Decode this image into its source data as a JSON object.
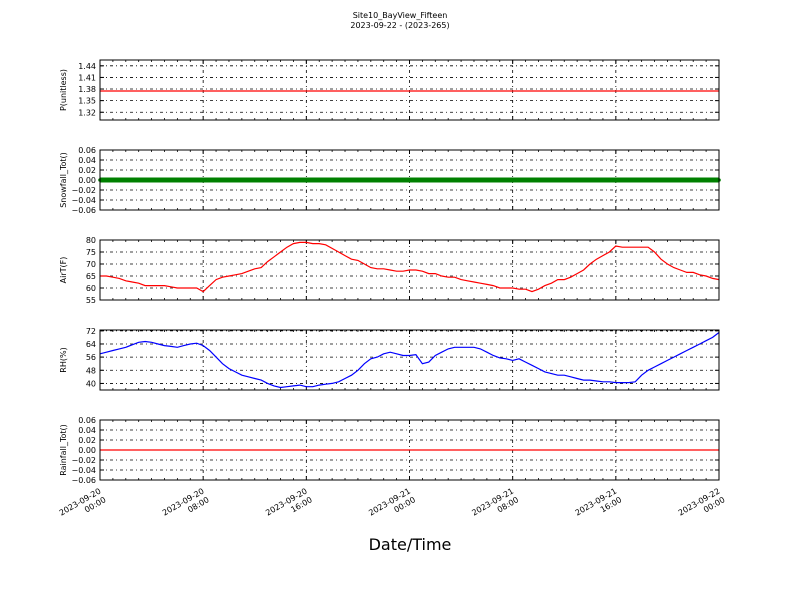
{
  "figure": {
    "title_line1": "Site10_BayView_Fifteen",
    "title_line2": "2023-09-22 - (2023-265)",
    "xlabel": "Date/Time",
    "x_ticks": [
      {
        "top": "2023-09-20",
        "bottom": "00:00"
      },
      {
        "top": "2023-09-20",
        "bottom": "08:00"
      },
      {
        "top": "2023-09-20",
        "bottom": "16:00"
      },
      {
        "top": "2023-09-21",
        "bottom": "00:00"
      },
      {
        "top": "2023-09-21",
        "bottom": "08:00"
      },
      {
        "top": "2023-09-21",
        "bottom": "16:00"
      },
      {
        "top": "2023-09-22",
        "bottom": "00:00"
      }
    ]
  },
  "chart_data": [
    {
      "type": "line",
      "ylabel": "P(unitless)",
      "ylim": [
        1.3,
        1.455
      ],
      "yticks": [
        "1.44",
        "1.41",
        "1.38",
        "1.35",
        "1.32"
      ],
      "ytick_values": [
        1.44,
        1.41,
        1.38,
        1.35,
        1.32
      ],
      "color": "#ff0000",
      "marker": false,
      "grid": true,
      "xlim_hours": [
        0,
        48
      ],
      "x_hours": [
        0,
        48
      ],
      "y": [
        1.375,
        1.375
      ]
    },
    {
      "type": "line",
      "ylabel": "Snowfall_Tot()",
      "ylim": [
        -0.06,
        0.06
      ],
      "yticks": [
        "0.06",
        "0.04",
        "0.02",
        "0.00",
        "−0.02",
        "−0.04",
        "−0.06"
      ],
      "ytick_values": [
        0.06,
        0.04,
        0.02,
        0.0,
        -0.02,
        -0.04,
        -0.06
      ],
      "color": "#008000",
      "marker": true,
      "grid": true,
      "xlim_hours": [
        0,
        48
      ],
      "x_hours": [
        0,
        48
      ],
      "y": [
        0.0,
        0.0
      ]
    },
    {
      "type": "line",
      "ylabel": "AirT(F)",
      "ylim": [
        55,
        80
      ],
      "yticks": [
        "80",
        "75",
        "70",
        "65",
        "60",
        "55"
      ],
      "ytick_values": [
        80,
        75,
        70,
        65,
        60,
        55
      ],
      "color": "#ff0000",
      "marker": false,
      "grid": true,
      "xlim_hours": [
        0,
        48
      ],
      "x_hours": [
        0,
        0.5,
        1,
        1.5,
        2,
        2.5,
        3,
        3.5,
        4,
        4.5,
        5,
        5.5,
        6,
        6.5,
        7,
        7.5,
        8,
        8.5,
        9,
        9.5,
        10,
        10.5,
        11,
        11.5,
        12,
        12.5,
        13,
        13.5,
        14,
        14.5,
        15,
        15.5,
        16,
        16.5,
        17,
        17.5,
        18,
        18.5,
        19,
        19.5,
        20,
        20.5,
        21,
        21.5,
        22,
        22.5,
        23,
        23.5,
        24,
        24.5,
        25,
        25.5,
        26,
        26.5,
        27,
        27.5,
        28,
        28.5,
        29,
        29.5,
        30,
        30.5,
        31,
        31.5,
        32,
        32.5,
        33,
        33.5,
        34,
        34.5,
        35,
        35.5,
        36,
        36.5,
        37,
        37.5,
        38,
        38.5,
        39,
        39.5,
        40,
        40.5,
        41,
        41.5,
        42,
        42.5,
        43,
        43.5,
        44,
        44.5,
        45,
        45.5,
        46,
        46.5,
        47,
        47.5,
        48
      ],
      "y": [
        65,
        65,
        64.5,
        64,
        63,
        62.5,
        62,
        61,
        61,
        61,
        61,
        60.5,
        60,
        60,
        60,
        60,
        58.5,
        61,
        63.5,
        64.5,
        65,
        65.5,
        66,
        67,
        68,
        68.5,
        71,
        73,
        75,
        77,
        78.5,
        79,
        79,
        78.5,
        78.5,
        78,
        76.5,
        75,
        73.5,
        72,
        71.5,
        70,
        68.5,
        68,
        68,
        67.5,
        67,
        67,
        67.5,
        67.5,
        67,
        66,
        66,
        65,
        64.5,
        64.5,
        63.5,
        63,
        62.5,
        62,
        61.5,
        61,
        60,
        60,
        60,
        59.5,
        59.5,
        58.5,
        59.5,
        61,
        62,
        63.5,
        63.5,
        64.5,
        66,
        67.5,
        70,
        72,
        73.5,
        75,
        77.5,
        77,
        77,
        77,
        77,
        77,
        75,
        72,
        70,
        68.5,
        67.5,
        66.5,
        66.5,
        65.5,
        65,
        64,
        63.5
      ]
    },
    {
      "type": "line",
      "ylabel": "RH(%)",
      "ylim": [
        36,
        72.5
      ],
      "yticks": [
        "72",
        "64",
        "56",
        "48",
        "40"
      ],
      "ytick_values": [
        72,
        64,
        56,
        48,
        40
      ],
      "color": "#0000ff",
      "marker": false,
      "grid": true,
      "xlim_hours": [
        0,
        48
      ],
      "x_hours": [
        0,
        0.5,
        1,
        1.5,
        2,
        2.5,
        3,
        3.5,
        4,
        4.5,
        5,
        5.5,
        6,
        6.5,
        7,
        7.5,
        8,
        8.5,
        9,
        9.5,
        10,
        10.5,
        11,
        11.5,
        12,
        12.5,
        13,
        13.5,
        14,
        14.5,
        15,
        15.5,
        16,
        16.5,
        17,
        17.5,
        18,
        18.5,
        19,
        19.5,
        20,
        20.5,
        21,
        21.5,
        22,
        22.5,
        23,
        23.5,
        24,
        24.5,
        25,
        25.5,
        26,
        26.5,
        27,
        27.5,
        28,
        28.5,
        29,
        29.5,
        30,
        30.5,
        31,
        31.5,
        32,
        32.5,
        33,
        33.5,
        34,
        34.5,
        35,
        35.5,
        36,
        36.5,
        37,
        37.5,
        38,
        38.5,
        39,
        39.5,
        40,
        40.5,
        41,
        41.5,
        42,
        42.5,
        43,
        43.5,
        44,
        44.5,
        45,
        45.5,
        46,
        46.5,
        47,
        47.5,
        48
      ],
      "y": [
        58,
        59,
        60,
        61,
        62,
        63.5,
        65,
        65.5,
        65,
        64,
        63,
        62.5,
        62,
        63,
        64,
        64.5,
        63,
        60,
        56,
        52,
        49,
        47,
        45,
        44,
        43,
        42,
        40,
        38.5,
        37.5,
        38,
        38.5,
        39,
        38,
        38,
        39,
        39.5,
        40,
        41,
        43,
        45,
        48,
        52,
        55,
        56,
        58,
        59,
        58,
        57,
        57,
        57.5,
        52,
        53,
        57,
        59,
        61,
        62,
        62,
        62,
        62,
        61,
        59,
        57,
        55.5,
        55,
        54,
        55,
        53,
        51,
        49,
        47,
        46,
        45,
        45,
        44,
        43,
        42,
        42,
        41.5,
        41,
        41,
        40.5,
        40.5,
        40.5,
        41,
        45,
        48,
        50,
        52,
        54,
        56,
        58,
        60,
        62,
        64,
        66,
        68,
        71
      ]
    },
    {
      "type": "line",
      "ylabel": "Rainfall_Tot()",
      "ylim": [
        -0.06,
        0.06
      ],
      "yticks": [
        "0.06",
        "0.04",
        "0.02",
        "0.00",
        "−0.02",
        "−0.04",
        "−0.06"
      ],
      "ytick_values": [
        0.06,
        0.04,
        0.02,
        0.0,
        -0.02,
        -0.04,
        -0.06
      ],
      "color": "#ff0000",
      "marker": false,
      "grid": true,
      "xlim_hours": [
        0,
        48
      ],
      "x_hours": [
        0,
        48
      ],
      "y": [
        0.0,
        0.0
      ]
    }
  ]
}
